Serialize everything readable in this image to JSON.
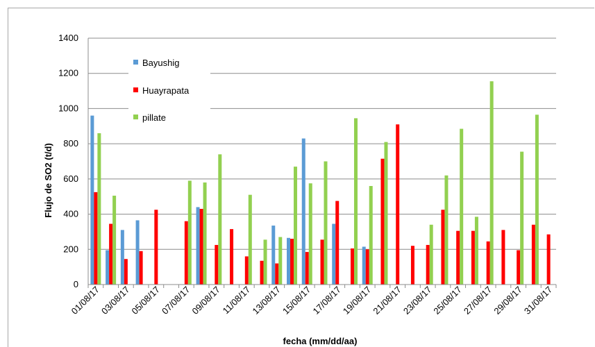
{
  "chart_data": {
    "type": "bar",
    "title": "",
    "xlabel": "fecha (mm/dd/aa)",
    "ylabel": "Flujo de SO2 (t/d)",
    "ylim": [
      0,
      1400
    ],
    "yticks": [
      0,
      200,
      400,
      600,
      800,
      1000,
      1200,
      1400
    ],
    "grid": true,
    "legend_position": "top-left",
    "categories": [
      "01/08/17",
      "02/08/17",
      "03/08/17",
      "04/08/17",
      "05/08/17",
      "06/08/17",
      "07/08/17",
      "08/08/17",
      "09/08/17",
      "10/08/17",
      "11/08/17",
      "12/08/17",
      "13/08/17",
      "14/08/17",
      "15/08/17",
      "16/08/17",
      "17/08/17",
      "18/08/17",
      "19/08/17",
      "20/08/17",
      "21/08/17",
      "22/08/17",
      "23/08/17",
      "24/08/17",
      "25/08/17",
      "26/08/17",
      "27/08/17",
      "28/08/17",
      "29/08/17",
      "30/08/17",
      "31/08/17"
    ],
    "xtick_labels": [
      "01/08/17",
      "03/08/17",
      "05/08/17",
      "07/08/17",
      "09/08/17",
      "11/08/17",
      "13/08/17",
      "15/08/17",
      "17/08/17",
      "19/08/17",
      "21/08/17",
      "23/08/17",
      "25/08/17",
      "27/08/17",
      "29/08/17",
      "31/08/17"
    ],
    "series": [
      {
        "name": "Bayushig",
        "color": "#5b9bd5",
        "values": [
          960,
          195,
          310,
          365,
          0,
          0,
          0,
          440,
          0,
          0,
          0,
          0,
          335,
          265,
          830,
          0,
          345,
          0,
          215,
          0,
          0,
          0,
          0,
          0,
          0,
          0,
          0,
          0,
          0,
          0,
          0
        ]
      },
      {
        "name": "Huayrapata",
        "color": "#ff0000",
        "values": [
          525,
          345,
          145,
          190,
          425,
          0,
          360,
          430,
          225,
          315,
          160,
          135,
          120,
          260,
          185,
          255,
          475,
          205,
          200,
          715,
          910,
          220,
          225,
          425,
          305,
          305,
          245,
          310,
          195,
          340,
          285
        ]
      },
      {
        "name": "pillate",
        "color": "#92d050",
        "values": [
          860,
          505,
          0,
          0,
          0,
          0,
          590,
          580,
          740,
          0,
          510,
          255,
          270,
          670,
          575,
          700,
          0,
          945,
          560,
          810,
          0,
          0,
          340,
          620,
          885,
          385,
          1155,
          0,
          755,
          965,
          0
        ]
      }
    ]
  }
}
